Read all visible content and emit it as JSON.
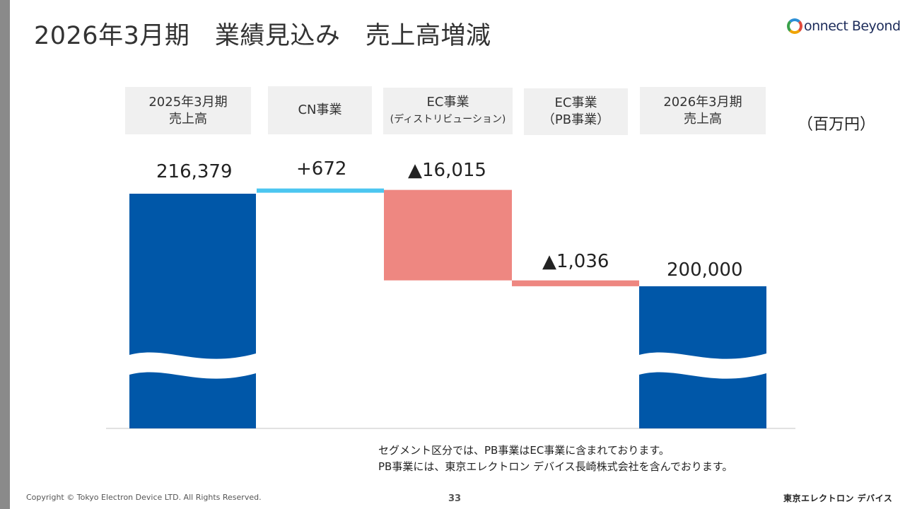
{
  "title": "2026年3月期　業績見込み　売上高増減",
  "logo_text": "onnect Beyond",
  "unit": "（百万円）",
  "headers": [
    {
      "line1": "2025年3月期",
      "line2": "売上高",
      "small": false
    },
    {
      "line1": "CN事業",
      "line2": "",
      "small": false
    },
    {
      "line1": "EC事業",
      "line2": "(ディストリビューション)",
      "small": true
    },
    {
      "line1": "EC事業",
      "line2": "（PB事業）",
      "small": false
    },
    {
      "line1": "2026年3月期",
      "line2": "売上高",
      "small": false
    }
  ],
  "chart_data": {
    "type": "bar",
    "subtype": "waterfall",
    "categories": [
      "2025年3月期 売上高",
      "CN事業",
      "EC事業 (ディストリビューション)",
      "EC事業 （PB事業）",
      "2026年3月期 売上高"
    ],
    "values": [
      216379,
      672,
      -16015,
      -1036,
      200000
    ],
    "kinds": [
      "total",
      "delta",
      "delta",
      "delta",
      "total"
    ],
    "labels": [
      "216,379",
      "+672",
      "▲16,015",
      "▲1,036",
      "200,000"
    ],
    "axis_break": true,
    "colors": {
      "total": "#0057a8",
      "increase": "#4cc6f0",
      "decrease": "#ee8781"
    }
  },
  "note": {
    "line1": "セグメント区分では、PB事業はEC事業に含まれております。",
    "line2": "PB事業には、東京エレクトロン デバイス長崎株式会社を含んでおります。"
  },
  "footer": {
    "copyright": "Copyright © Tokyo Electron Device LTD. All Rights Reserved.",
    "page": "33",
    "company": "東京エレクトロン デバイス"
  }
}
